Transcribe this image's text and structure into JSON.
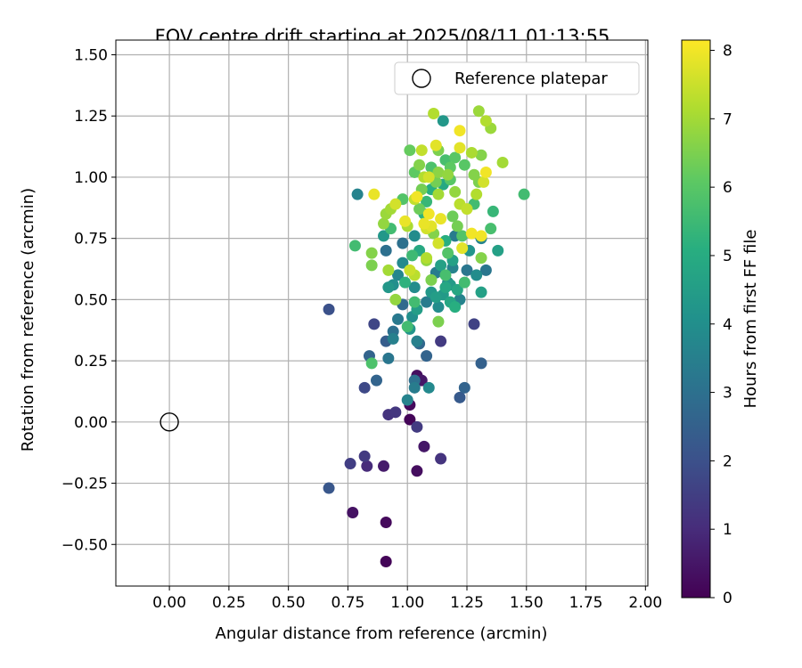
{
  "chart_data": {
    "type": "scatter",
    "title": "FOV centre drift starting at 2025/08/11 01:13:55",
    "xlabel": "Angular distance from reference (arcmin)",
    "ylabel": "Rotation from reference (arcmin)",
    "xlim": [
      -0.225,
      2.01
    ],
    "ylim": [
      -0.67,
      1.56
    ],
    "x_ticks": [
      "0.00",
      "0.25",
      "0.50",
      "0.75",
      "1.00",
      "1.25",
      "1.50",
      "1.75",
      "2.00"
    ],
    "y_ticks": [
      "−0.50",
      "−0.25",
      "0.00",
      "0.25",
      "0.50",
      "0.75",
      "1.00",
      "1.25",
      "1.50"
    ],
    "grid": true,
    "legend_position": "upper right",
    "legend": [
      {
        "label": "Reference platepar",
        "marker": "open-circle"
      }
    ],
    "reference_point": {
      "x": 0.0,
      "y": 0.0
    },
    "colorbar": {
      "label": "Hours from first FF file",
      "min": 0,
      "max": 8.15,
      "ticks": [
        "0",
        "1",
        "2",
        "3",
        "4",
        "5",
        "6",
        "7",
        "8"
      ],
      "colormap": "viridis"
    },
    "point_fields": [
      "x",
      "y",
      "hours"
    ],
    "points": [
      [
        0.91,
        -0.57,
        0.1
      ],
      [
        0.91,
        -0.41,
        0.2
      ],
      [
        0.77,
        -0.37,
        0.4
      ],
      [
        1.04,
        -0.2,
        0.3
      ],
      [
        1.07,
        -0.1,
        0.5
      ],
      [
        1.14,
        -0.15,
        1.2
      ],
      [
        0.9,
        -0.18,
        0.6
      ],
      [
        0.83,
        -0.18,
        1.0
      ],
      [
        0.76,
        -0.17,
        1.5
      ],
      [
        0.82,
        -0.14,
        1.4
      ],
      [
        0.67,
        -0.27,
        2.2
      ],
      [
        1.01,
        0.01,
        0.1
      ],
      [
        1.01,
        0.07,
        0.2
      ],
      [
        1.04,
        -0.02,
        1.4
      ],
      [
        0.95,
        0.04,
        1.3
      ],
      [
        0.92,
        0.03,
        1.2
      ],
      [
        1.04,
        0.19,
        0.3
      ],
      [
        1.06,
        0.17,
        0.5
      ],
      [
        1.22,
        0.1,
        2.3
      ],
      [
        1.24,
        0.14,
        2.6
      ],
      [
        0.82,
        0.14,
        1.8
      ],
      [
        0.87,
        0.17,
        2.6
      ],
      [
        0.84,
        0.27,
        2.6
      ],
      [
        0.85,
        0.24,
        5.8
      ],
      [
        1.0,
        0.09,
        3.6
      ],
      [
        1.03,
        0.14,
        3.4
      ],
      [
        1.03,
        0.17,
        3.0
      ],
      [
        1.09,
        0.14,
        3.8
      ],
      [
        0.92,
        0.26,
        3.2
      ],
      [
        1.08,
        0.27,
        2.6
      ],
      [
        0.67,
        0.46,
        2.0
      ],
      [
        0.86,
        0.4,
        1.7
      ],
      [
        0.91,
        0.33,
        2.4
      ],
      [
        0.94,
        0.34,
        3.5
      ],
      [
        0.94,
        0.37,
        3.0
      ],
      [
        1.05,
        0.32,
        2.7
      ],
      [
        1.04,
        0.33,
        3.5
      ],
      [
        1.14,
        0.33,
        1.4
      ],
      [
        1.31,
        0.24,
        2.5
      ],
      [
        1.28,
        0.4,
        1.6
      ],
      [
        1.13,
        0.41,
        6.5
      ],
      [
        1.0,
        0.39,
        5.6
      ],
      [
        1.02,
        0.43,
        4.0
      ],
      [
        1.01,
        0.38,
        4.2
      ],
      [
        0.96,
        0.42,
        3.3
      ],
      [
        0.98,
        0.48,
        2.8
      ],
      [
        1.03,
        0.49,
        5.6
      ],
      [
        1.04,
        0.46,
        4.5
      ],
      [
        1.08,
        0.49,
        3.4
      ],
      [
        1.1,
        0.53,
        4.3
      ],
      [
        1.12,
        0.51,
        4.5
      ],
      [
        1.15,
        0.52,
        4.4
      ],
      [
        1.18,
        0.49,
        4.8
      ],
      [
        1.2,
        0.47,
        5.1
      ],
      [
        1.22,
        0.5,
        3.6
      ],
      [
        1.16,
        0.55,
        4.8
      ],
      [
        1.13,
        0.47,
        3.9
      ],
      [
        1.18,
        0.56,
        4.4
      ],
      [
        1.1,
        0.58,
        6.5
      ],
      [
        1.03,
        0.55,
        3.9
      ],
      [
        0.92,
        0.55,
        4.3
      ],
      [
        0.94,
        0.56,
        4.0
      ],
      [
        0.96,
        0.6,
        3.7
      ],
      [
        0.99,
        0.57,
        5.2
      ],
      [
        1.03,
        0.6,
        7.3
      ],
      [
        0.95,
        0.5,
        6.8
      ],
      [
        0.92,
        0.62,
        7.0
      ],
      [
        0.91,
        0.7,
        3.0
      ],
      [
        0.98,
        0.65,
        3.8
      ],
      [
        1.02,
        0.68,
        5.5
      ],
      [
        1.05,
        0.7,
        4.9
      ],
      [
        1.08,
        0.66,
        6.8
      ],
      [
        1.12,
        0.61,
        3.4
      ],
      [
        1.16,
        0.6,
        5.7
      ],
      [
        1.19,
        0.63,
        3.6
      ],
      [
        1.19,
        0.66,
        4.6
      ],
      [
        1.25,
        0.62,
        3.2
      ],
      [
        1.29,
        0.6,
        3.9
      ],
      [
        1.33,
        0.62,
        3.2
      ],
      [
        1.31,
        0.53,
        4.6
      ],
      [
        1.24,
        0.57,
        5.6
      ],
      [
        1.26,
        0.7,
        4.2
      ],
      [
        1.31,
        0.67,
        6.6
      ],
      [
        1.31,
        0.75,
        3.6
      ],
      [
        1.35,
        0.79,
        5.7
      ],
      [
        1.38,
        0.7,
        4.6
      ],
      [
        1.49,
        0.93,
        5.6
      ],
      [
        1.23,
        0.76,
        5.9
      ],
      [
        1.2,
        0.76,
        3.4
      ],
      [
        1.16,
        0.74,
        5.1
      ],
      [
        1.11,
        0.77,
        6.6
      ],
      [
        1.08,
        0.79,
        7.6
      ],
      [
        1.1,
        0.8,
        7.8
      ],
      [
        1.07,
        0.81,
        7.9
      ],
      [
        1.03,
        0.76,
        3.9
      ],
      [
        1.0,
        0.8,
        7.1
      ],
      [
        0.99,
        0.82,
        7.9
      ],
      [
        0.93,
        0.79,
        5.6
      ],
      [
        0.9,
        0.81,
        6.8
      ],
      [
        0.9,
        0.76,
        4.3
      ],
      [
        0.85,
        0.69,
        6.6
      ],
      [
        0.85,
        0.64,
        6.5
      ],
      [
        0.78,
        0.72,
        5.6
      ],
      [
        0.79,
        0.93,
        3.6
      ],
      [
        0.86,
        0.93,
        7.9
      ],
      [
        0.91,
        0.85,
        6.9
      ],
      [
        0.93,
        0.87,
        7.0
      ],
      [
        0.95,
        0.89,
        7.6
      ],
      [
        0.98,
        0.91,
        5.9
      ],
      [
        1.03,
        0.91,
        7.4
      ],
      [
        1.04,
        0.92,
        8.0
      ],
      [
        1.06,
        0.95,
        6.4
      ],
      [
        1.08,
        0.9,
        5.4
      ],
      [
        1.1,
        0.95,
        5.1
      ],
      [
        1.13,
        0.93,
        7.0
      ],
      [
        1.15,
        0.97,
        4.9
      ],
      [
        1.18,
        0.99,
        6.0
      ],
      [
        1.2,
        0.94,
        6.8
      ],
      [
        1.22,
        0.89,
        7.3
      ],
      [
        1.25,
        0.87,
        7.4
      ],
      [
        1.28,
        0.89,
        5.6
      ],
      [
        1.29,
        0.93,
        7.2
      ],
      [
        1.3,
        0.98,
        6.5
      ],
      [
        1.33,
        1.02,
        8.0
      ],
      [
        1.32,
        0.98,
        7.6
      ],
      [
        1.28,
        1.01,
        6.6
      ],
      [
        1.27,
        1.1,
        7.1
      ],
      [
        1.24,
        1.05,
        6.0
      ],
      [
        1.22,
        1.12,
        7.8
      ],
      [
        1.2,
        1.08,
        6.0
      ],
      [
        1.17,
        1.01,
        6.8
      ],
      [
        1.13,
        1.02,
        6.7
      ],
      [
        1.1,
        1.04,
        5.8
      ],
      [
        1.07,
        1.0,
        7.2
      ],
      [
        1.05,
        1.05,
        6.6
      ],
      [
        1.03,
        1.02,
        6.1
      ],
      [
        1.01,
        1.11,
        6.2
      ],
      [
        1.06,
        1.11,
        7.4
      ],
      [
        1.12,
        1.13,
        7.8
      ],
      [
        1.13,
        1.11,
        6.5
      ],
      [
        1.16,
        1.07,
        5.7
      ],
      [
        1.15,
        1.23,
        4.3
      ],
      [
        1.11,
        1.26,
        7.2
      ],
      [
        1.22,
        1.19,
        8.0
      ],
      [
        1.3,
        1.27,
        6.9
      ],
      [
        1.33,
        1.23,
        7.2
      ],
      [
        1.35,
        1.2,
        6.9
      ],
      [
        1.31,
        1.09,
        6.6
      ],
      [
        1.4,
        1.06,
        7.0
      ],
      [
        1.36,
        0.86,
        5.4
      ],
      [
        1.09,
        0.85,
        8.0
      ],
      [
        1.13,
        0.73,
        7.6
      ],
      [
        1.17,
        0.69,
        5.9
      ],
      [
        1.19,
        0.84,
        6.3
      ],
      [
        1.21,
        0.8,
        6.4
      ],
      [
        1.23,
        0.71,
        7.8
      ],
      [
        1.27,
        0.77,
        8.0
      ],
      [
        1.31,
        0.76,
        8.0
      ],
      [
        1.14,
        0.83,
        7.9
      ],
      [
        0.98,
        0.73,
        3.0
      ],
      [
        1.01,
        0.62,
        7.5
      ],
      [
        1.08,
        0.67,
        7.2
      ],
      [
        1.14,
        0.64,
        4.6
      ],
      [
        1.17,
        0.57,
        3.8
      ],
      [
        1.21,
        0.54,
        4.8
      ],
      [
        1.07,
        0.85,
        5.2
      ],
      [
        1.12,
        0.98,
        6.4
      ],
      [
        1.18,
        1.04,
        6.1
      ],
      [
        1.09,
        1.0,
        7.6
      ],
      [
        1.05,
        0.87,
        6.3
      ]
    ]
  }
}
